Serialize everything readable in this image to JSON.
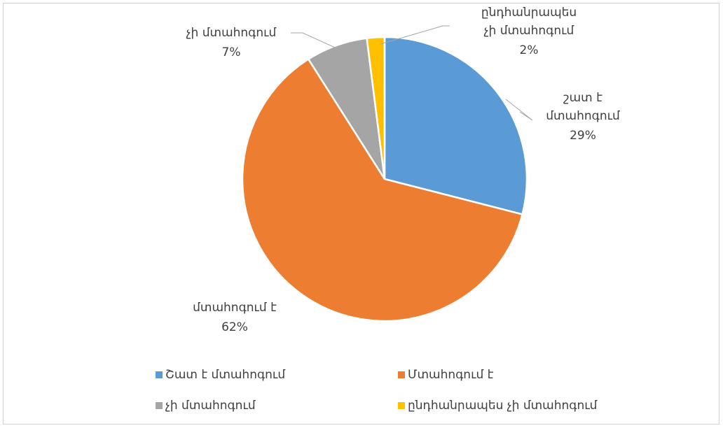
{
  "chart_data": {
    "type": "pie",
    "categories": [
      "Շատ է մտահոգում",
      "Մտահոգում է",
      "չի մտահոգում",
      "ընդհանրապես չի մտահոգում"
    ],
    "values": [
      29,
      62,
      7,
      2
    ],
    "value_labels": [
      "29%",
      "62%",
      "7%",
      "2%"
    ],
    "data_labels": [
      [
        "շատ է",
        "մտահոգում"
      ],
      [
        "մտահոգում է"
      ],
      [
        "չի մտահոգում"
      ],
      [
        "ընդհանրապես",
        "չի մտահոգում"
      ]
    ],
    "colors": [
      "#5b9bd5",
      "#ed7d31",
      "#a5a5a5",
      "#ffc000"
    ],
    "legend": "bottom"
  }
}
